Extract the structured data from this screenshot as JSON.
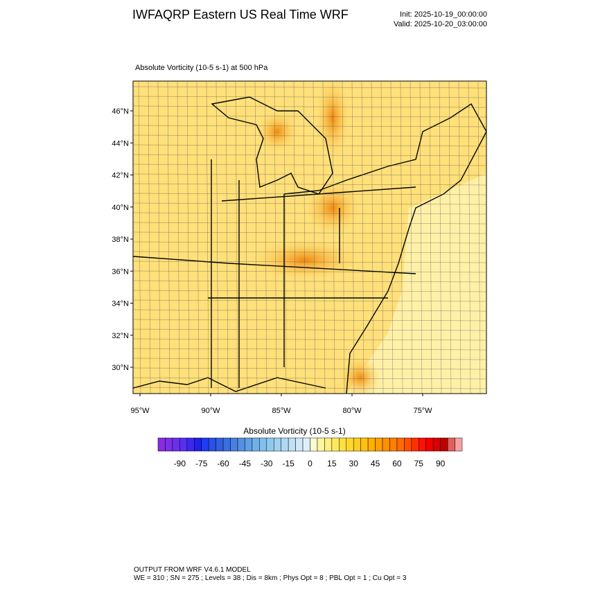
{
  "header": {
    "title": "IWFAQRP Eastern US Real Time WRF",
    "init": "Init: 2025-10-19_00:00:00",
    "valid": "Valid: 2025-10-20_03:00:00"
  },
  "map": {
    "subtitle": "Absolute Vorticity   (10-5 s-1)     at   500 hPa",
    "lat_labels": [
      "46°N",
      "44°N",
      "42°N",
      "40°N",
      "38°N",
      "36°N",
      "34°N",
      "32°N",
      "30°N"
    ],
    "lon_labels": [
      "95°W",
      "90°W",
      "85°W",
      "80°W",
      "75°W"
    ]
  },
  "colorbar": {
    "title": "Absolute Vorticity  (10-5 s-1)",
    "lim": [
      -105,
      105
    ],
    "ticks": [
      -90,
      -75,
      -60,
      -45,
      -30,
      -15,
      0,
      15,
      30,
      45,
      60,
      75,
      90
    ],
    "colors": [
      "#8a2be2",
      "#7b2ee8",
      "#6a30ec",
      "#5a2ef0",
      "#3a28f0",
      "#2020e8",
      "#1e3cf0",
      "#2a50e8",
      "#3060e0",
      "#3a6fe0",
      "#4880e0",
      "#5590e0",
      "#60a0e8",
      "#70b0e8",
      "#80c0ec",
      "#90c8ec",
      "#a0d0f0",
      "#b0d8f2",
      "#c0e0f4",
      "#d0e8f8",
      "#e0f0fa",
      "#fffbd0",
      "#fff5a0",
      "#fff080",
      "#ffe860",
      "#ffe040",
      "#ffd830",
      "#ffcc20",
      "#ffc010",
      "#ffb000",
      "#ffa000",
      "#ff9000",
      "#ff8000",
      "#ff6a00",
      "#ff5000",
      "#ff3000",
      "#ff1000",
      "#f00000",
      "#d80000",
      "#c00000",
      "#e06060",
      "#f8a0a0"
    ]
  },
  "footer": {
    "line1": "OUTPUT FROM WRF V4.6.1 MODEL",
    "line2": "WE = 310 ; SN = 275 ; Levels = 38 ; Dis = 8km ; Phys Opt = 8 ; PBL Opt = 1 ; Cu Opt = 3"
  }
}
